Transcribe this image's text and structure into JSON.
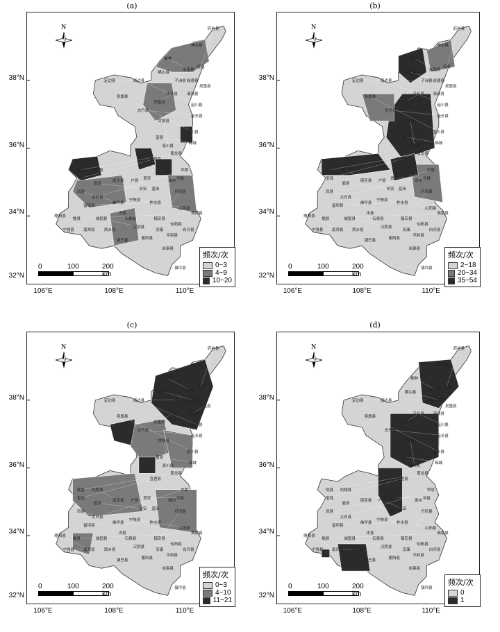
{
  "panels": [
    {
      "label": "(a)",
      "legend": {
        "title": "频次/次",
        "classes": [
          {
            "range": "0~3",
            "color": "#d4d4d4"
          },
          {
            "range": "4~9",
            "color": "#7a7a7a"
          },
          {
            "range": "10~20",
            "color": "#2b2b2b"
          }
        ]
      },
      "counties": [
        "府谷县",
        "神木县",
        "榆林",
        "佳县",
        "横山县",
        "米脂县",
        "子洲县",
        "绥德县",
        "吴堡县",
        "定边县",
        "靖边县",
        "清涧县",
        "子长县",
        "延川县",
        "延长县",
        "安塞县",
        "吴旗县",
        "志丹县",
        "甘泉县",
        "宜川县",
        "富县",
        "洛川县",
        "黄龙县",
        "韩城",
        "宜君县",
        "陇县",
        "凤翔县",
        "宝鸡",
        "眉县",
        "周至县",
        "户县",
        "长安",
        "西安",
        "蓝田",
        "华阴",
        "华县",
        "凤县",
        "太白县",
        "留坝县",
        "佛坪县",
        "宁陕县",
        "柞水县",
        "镇安县",
        "山阳县",
        "商南县",
        "丹凤县",
        "略阳县",
        "勉县",
        "宁强县",
        "南郑县",
        "城固县",
        "西乡县",
        "石泉县",
        "汉阴县",
        "紫阳县",
        "岚皋县",
        "平利县",
        "旬阳县",
        "白河县",
        "镇巴县",
        "镇坪县",
        "安康",
        "洋县",
        "商州"
      ]
    },
    {
      "label": "(b)",
      "legend": {
        "title": "频次/次",
        "classes": [
          {
            "range": "2~18",
            "color": "#d4d4d4"
          },
          {
            "range": "20~34",
            "color": "#7a7a7a"
          },
          {
            "range": "35~54",
            "color": "#2b2b2b"
          }
        ]
      },
      "counties": [
        "府谷县",
        "神木县",
        "榆林",
        "佳县",
        "横山县",
        "米脂县",
        "子洲县",
        "绥德县",
        "吴堡县",
        "定边县",
        "靖边县",
        "清涧县",
        "子长县",
        "延川县",
        "延长县",
        "安塞县",
        "吴旗县",
        "志丹县",
        "甘泉县",
        "宜川县",
        "富县",
        "洛川县",
        "黄龙县",
        "韩城",
        "宜君县",
        "陇县",
        "凤翔县",
        "宝鸡",
        "眉县",
        "周至县",
        "户县",
        "长安",
        "西安",
        "蓝田",
        "华阴",
        "华县",
        "凤县",
        "太白县",
        "留坝县",
        "佛坪县",
        "宁陕县",
        "柞水县",
        "镇安县",
        "山阳县",
        "商南县",
        "丹凤县",
        "略阳县",
        "勉县",
        "宁强县",
        "南郑县",
        "城固县",
        "西乡县",
        "石泉县",
        "汉阴县",
        "紫阳县",
        "岚皋县",
        "平利县",
        "旬阳县",
        "白河县",
        "镇巴县",
        "镇坪县",
        "安康",
        "洋县",
        "商州"
      ]
    },
    {
      "label": "(c)",
      "legend": {
        "title": "频次/次",
        "classes": [
          {
            "range": "0~3",
            "color": "#d4d4d4"
          },
          {
            "range": "4~10",
            "color": "#7a7a7a"
          },
          {
            "range": "11~21",
            "color": "#2b2b2b"
          }
        ]
      },
      "counties": [
        "府谷县",
        "神木县",
        "榆林",
        "佳县",
        "横山县",
        "米脂县",
        "子洲县",
        "绥德县",
        "吴堡县",
        "定边县",
        "靖边县",
        "清涧县",
        "子长县",
        "延川县",
        "延长县",
        "安塞县",
        "吴旗县",
        "志丹县",
        "甘泉县",
        "宜川县",
        "富县",
        "洛川县",
        "黄龙县",
        "韩城",
        "宜君县",
        "陇县",
        "凤翔县",
        "宝鸡",
        "眉县",
        "周至县",
        "户县",
        "长安",
        "西安",
        "蓝田",
        "华阴",
        "华县",
        "凤县",
        "太白县",
        "留坝县",
        "佛坪县",
        "宁陕县",
        "柞水县",
        "镇安县",
        "山阳县",
        "商南县",
        "丹凤县",
        "略阳县",
        "勉县",
        "宁强县",
        "南郑县",
        "城固县",
        "西乡县",
        "石泉县",
        "汉阴县",
        "紫阳县",
        "岚皋县",
        "平利县",
        "旬阳县",
        "白河县",
        "镇巴县",
        "镇坪县",
        "安康",
        "洋县",
        "商州"
      ]
    },
    {
      "label": "(d)",
      "legend": {
        "title": "频次/次",
        "classes": [
          {
            "range": "0",
            "color": "#d4d4d4"
          },
          {
            "range": "1",
            "color": "#2b2b2b"
          }
        ]
      },
      "counties": [
        "府谷县",
        "神木县",
        "榆林",
        "佳县",
        "横山县",
        "米脂县",
        "子洲县",
        "绥德县",
        "吴堡县",
        "定边县",
        "靖边县",
        "清涧县",
        "子长县",
        "延川县",
        "延长县",
        "安塞县",
        "吴旗县",
        "志丹县",
        "甘泉县",
        "宜川县",
        "富县",
        "洛川县",
        "黄龙县",
        "韩城",
        "宜君县",
        "陇县",
        "凤翔县",
        "宝鸡",
        "眉县",
        "周至县",
        "户县",
        "长安",
        "西安",
        "蓝田",
        "华阴",
        "华县",
        "凤县",
        "太白县",
        "留坝县",
        "佛坪县",
        "宁陕县",
        "柞水县",
        "镇安县",
        "山阳县",
        "商南县",
        "丹凤县",
        "略阳县",
        "勉县",
        "宁强县",
        "南郑县",
        "城固县",
        "西乡县",
        "石泉县",
        "汉阴县",
        "紫阳县",
        "岚皋县",
        "平利县",
        "旬阳县",
        "白河县",
        "镇巴县",
        "镇坪县",
        "安康",
        "洋县",
        "商州"
      ]
    }
  ],
  "axes": {
    "lat_labels": [
      "38°N",
      "36°N",
      "34°N",
      "32°N"
    ],
    "lon_labels": [
      "106°E",
      "108°E",
      "110°E"
    ]
  },
  "scalebar": {
    "ticks": [
      "0",
      "100",
      "200 km"
    ]
  },
  "north_label": "N"
}
